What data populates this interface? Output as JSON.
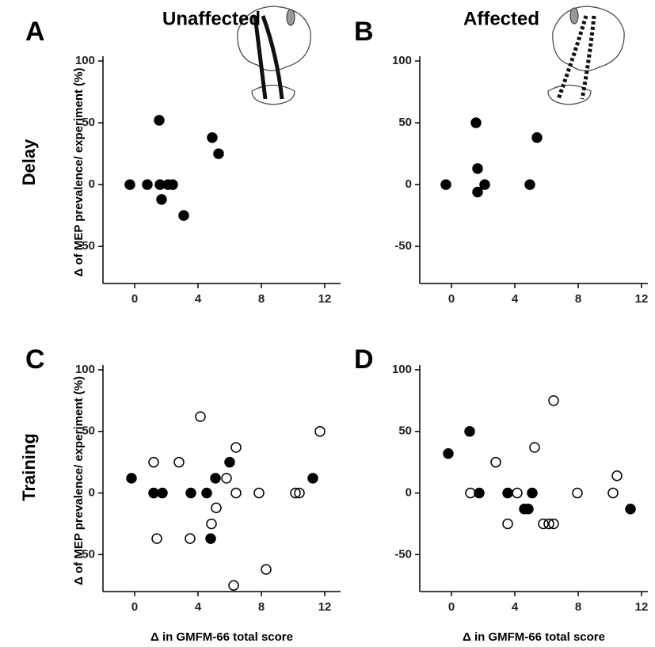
{
  "row_labels": [
    "Delay",
    "Training"
  ],
  "chart_data": [
    {
      "type": "scatter",
      "panel": "A",
      "title": "Unaffected",
      "ylabel": "Δ of MEP prevalence/ experiment (%)",
      "xlim": [
        -2,
        13
      ],
      "ylim": [
        -80,
        100
      ],
      "xticks": [
        0,
        4,
        8,
        12
      ],
      "yticks": [
        100,
        50,
        0,
        -50
      ],
      "series": [
        {
          "color": "#000000",
          "fill": "#000000",
          "x": [
            -0.3,
            0.8,
            1.55,
            1.6,
            1.7,
            2.1,
            2.4,
            3.1,
            4.9,
            5.3
          ],
          "values": [
            0,
            0,
            52,
            0,
            -12,
            0,
            0,
            -25,
            38,
            25
          ]
        }
      ]
    },
    {
      "type": "scatter",
      "panel": "B",
      "title": "Affected",
      "xlim": [
        -2,
        13
      ],
      "ylim": [
        -80,
        100
      ],
      "xticks": [
        0,
        4,
        8,
        12
      ],
      "yticks": [
        100,
        50,
        0,
        -50
      ],
      "series": [
        {
          "color": "#000000",
          "fill": "#000000",
          "x": [
            -0.35,
            1.55,
            1.65,
            1.65,
            2.1,
            4.95,
            5.4
          ],
          "values": [
            0,
            50,
            13,
            -6,
            0,
            0,
            38
          ]
        }
      ]
    },
    {
      "type": "scatter",
      "panel": "C",
      "ylabel": "Δ of MEP prevalence/ experiment (%)",
      "xlabel": "Δ  in GMFM-66 total score",
      "xlim": [
        -2,
        13
      ],
      "ylim": [
        -80,
        100
      ],
      "xticks": [
        0,
        4,
        8,
        12
      ],
      "yticks": [
        100,
        50,
        0,
        -50
      ],
      "series": [
        {
          "color": "#000000",
          "fill": "#000000",
          "x": [
            -0.2,
            1.2,
            1.75,
            3.55,
            4.55,
            4.8,
            5.1,
            6.0,
            11.25
          ],
          "values": [
            12,
            0,
            0,
            0,
            0,
            -37,
            12,
            25,
            12
          ]
        },
        {
          "color": "#000000",
          "fill": "none",
          "x": [
            1.2,
            1.4,
            2.8,
            3.5,
            4.15,
            4.85,
            5.15,
            5.8,
            6.4,
            6.4,
            6.25,
            7.85,
            8.3,
            10.15,
            10.4,
            11.7
          ],
          "values": [
            25,
            -37,
            25,
            -37,
            62,
            -25,
            -12,
            12,
            37,
            0,
            -75,
            0,
            -62,
            0,
            0,
            50
          ]
        }
      ]
    },
    {
      "type": "scatter",
      "panel": "D",
      "xlabel": "Δ  in GMFM-66 total score",
      "xlim": [
        -2,
        13
      ],
      "ylim": [
        -80,
        100
      ],
      "xticks": [
        0,
        4,
        8,
        12
      ],
      "yticks": [
        100,
        50,
        0,
        -50
      ],
      "series": [
        {
          "color": "#000000",
          "fill": "#000000",
          "x": [
            -0.2,
            1.15,
            1.75,
            3.55,
            4.6,
            4.85,
            5.1,
            11.3
          ],
          "values": [
            32,
            50,
            0,
            0,
            -13,
            -13,
            0,
            -13
          ]
        },
        {
          "color": "#000000",
          "fill": "none",
          "x": [
            1.2,
            2.8,
            3.55,
            4.15,
            5.25,
            5.8,
            6.15,
            6.45,
            6.45,
            7.95,
            10.2,
            10.45
          ],
          "values": [
            0,
            25,
            -25,
            0,
            37,
            -25,
            -25,
            -25,
            75,
            0,
            0,
            14
          ]
        }
      ]
    }
  ]
}
